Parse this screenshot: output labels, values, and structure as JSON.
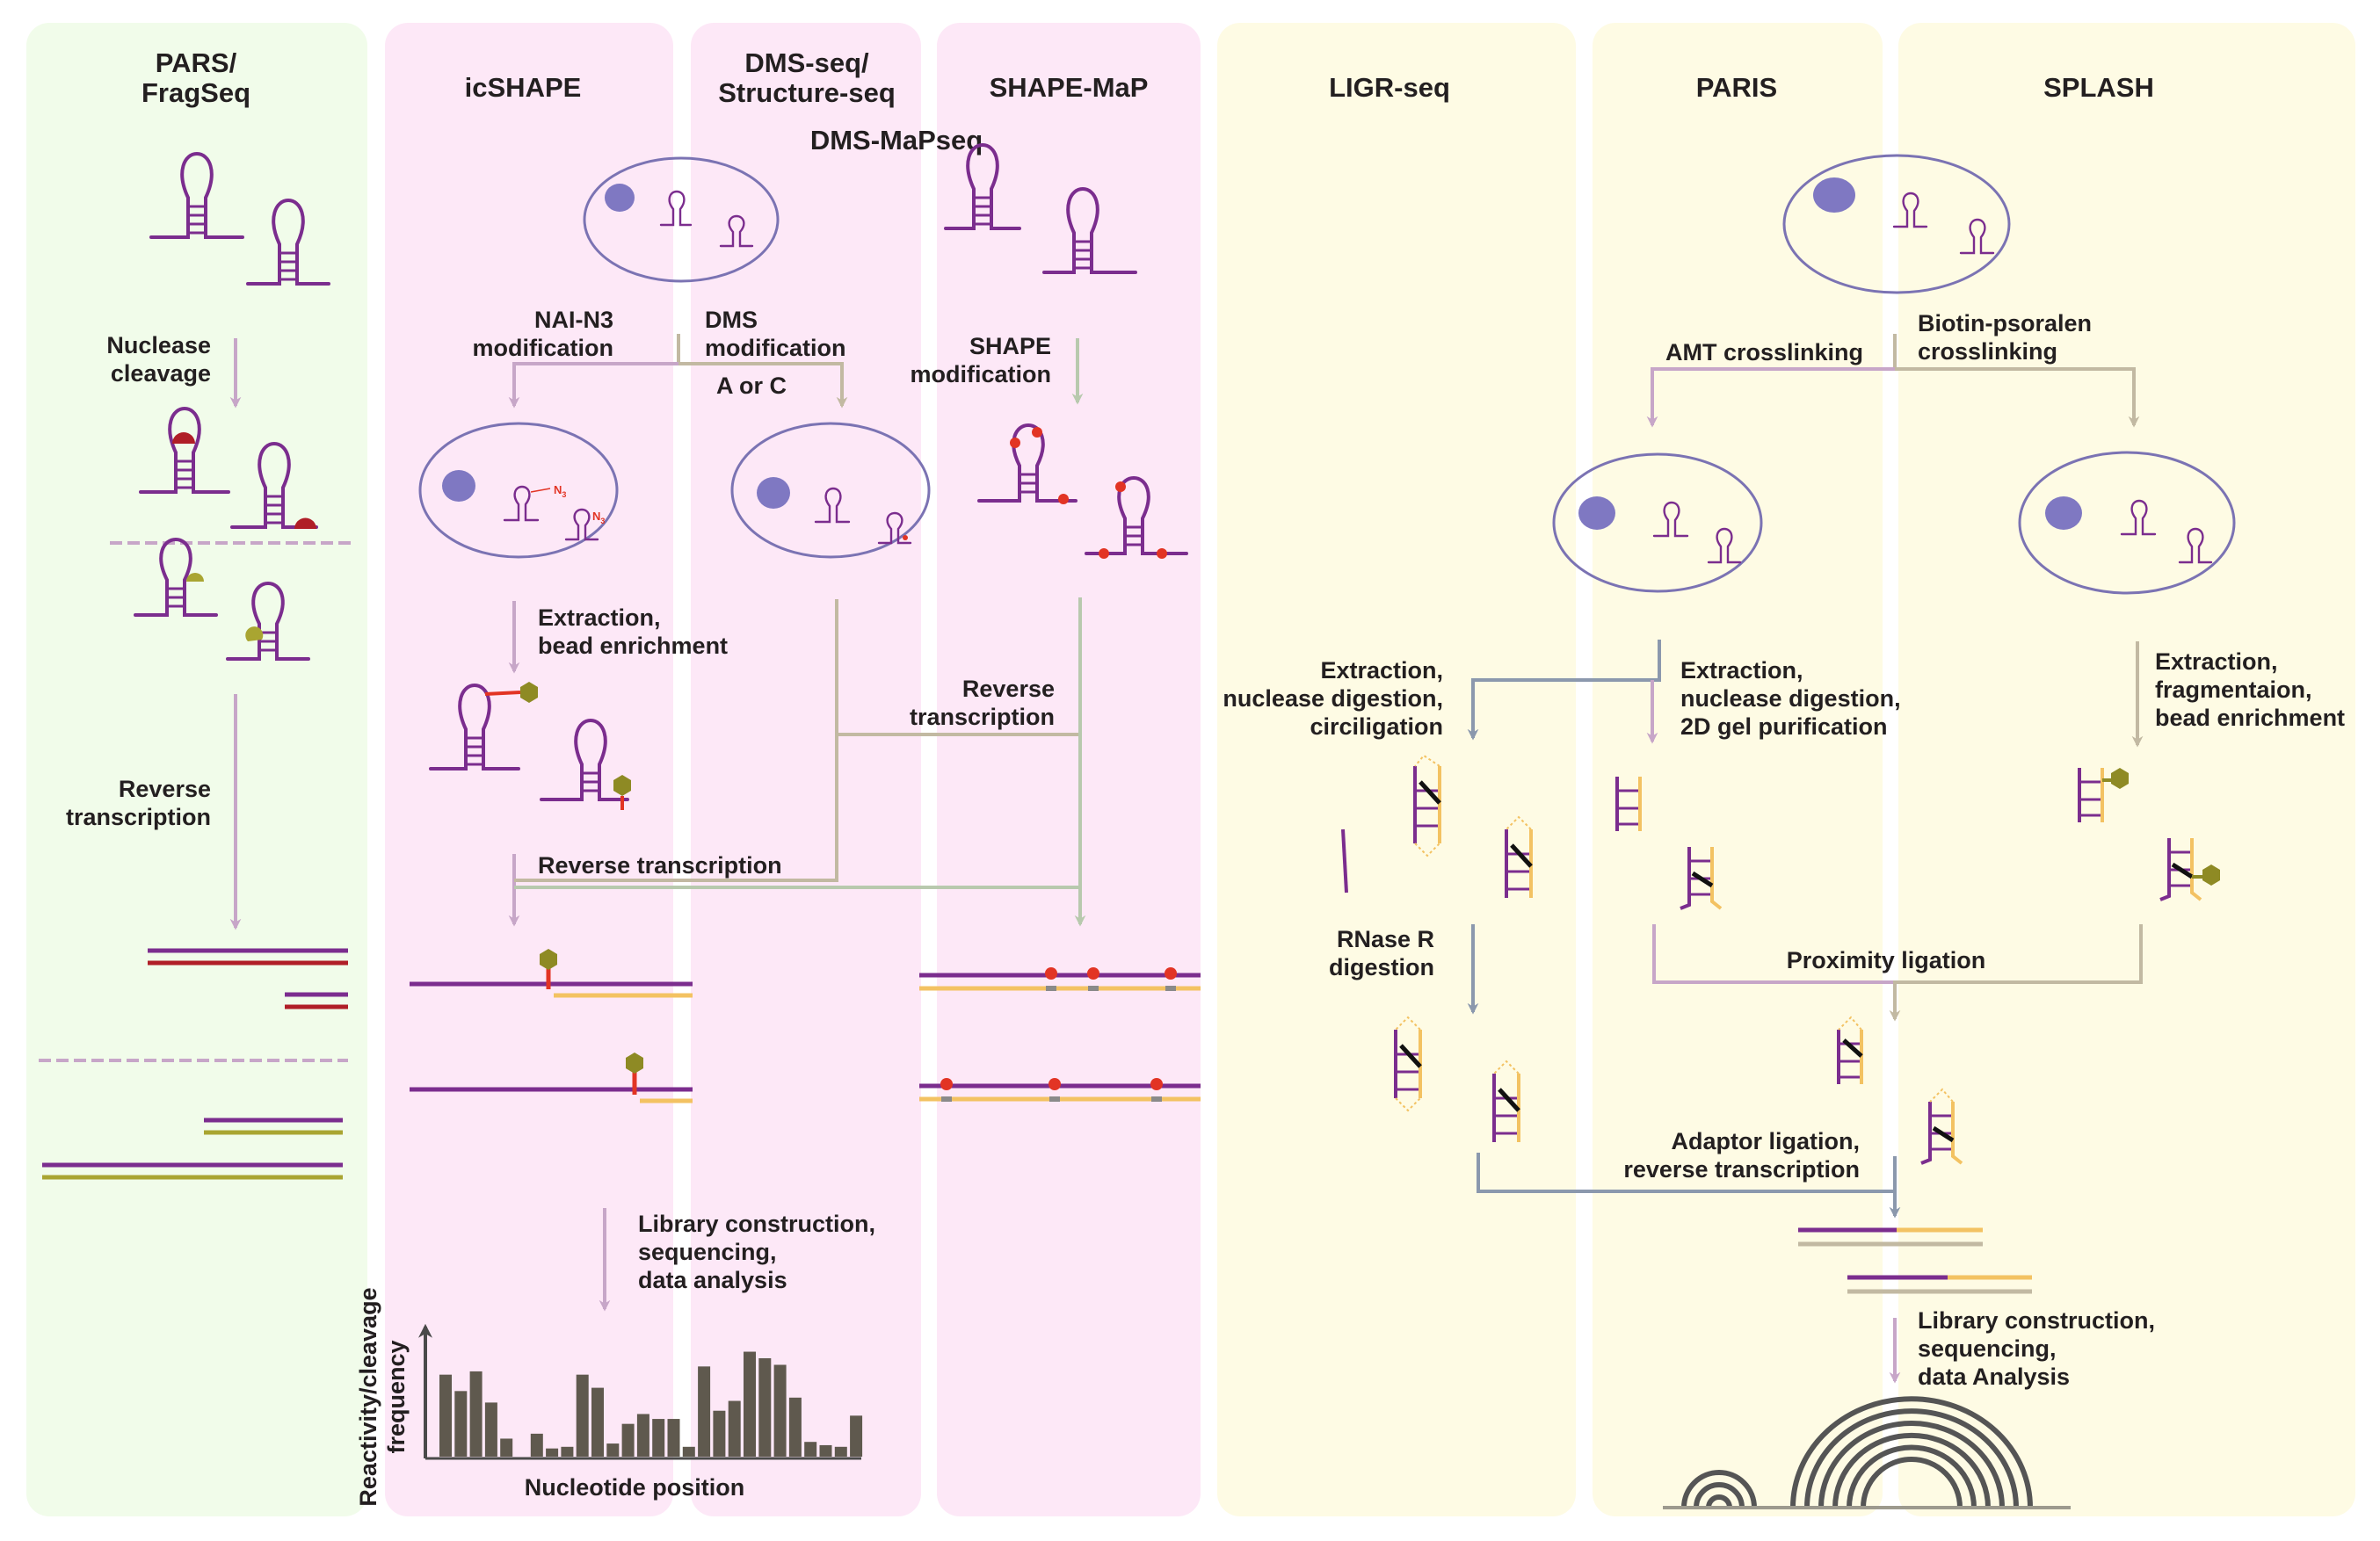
{
  "colors": {
    "panel_green": "#f1fcea",
    "panel_pink": "#fde8f7",
    "panel_yellow": "#fefbe4",
    "rna": "#7b2d8e",
    "cell": "#7b73b3",
    "nucleus": "#7f78c2",
    "arrow_pink": "#c7a6c8",
    "arrow_tan": "#c2b9a2",
    "arrow_green": "#b8c9ae",
    "arrow_blue": "#8b98ad",
    "red": "#e23424",
    "darkred": "#b01e27",
    "olive": "#8e8a24",
    "oliveline": "#a9a531",
    "yellow": "#f3c262",
    "bar": "#5f594e",
    "arc": "#555555"
  },
  "panels": {
    "pars": "PARS/\nFragSeq",
    "icshape": "icSHAPE",
    "dms": "DMS-seq/\nStructure-seq",
    "dms_map": "DMS-MaPseq",
    "shape_map": "SHAPE-MaP",
    "ligr": "LIGR-seq",
    "paris": "PARIS",
    "splash": "SPLASH"
  },
  "steps": {
    "nuclease_cleavage": "Nuclease\ncleavage",
    "pars_rt": "Reverse\ntranscription",
    "nai_n3": "NAI-N3\nmodification",
    "dms_mod": "DMS\nmodification",
    "a_or_c": "A or C",
    "shape_mod": "SHAPE\nmodification",
    "extraction_bead": "Extraction,\nbead enrichment",
    "rt_mid": "Reverse\ntranscription",
    "rt_main": "Reverse transcription",
    "library": "Library construction,\nsequencing,\ndata analysis",
    "amt": "AMT crosslinking",
    "biotin": "Biotin-psoralen\ncrosslinking",
    "ligr_extract": "Extraction,\nnuclease digestion,\ncirciligation",
    "paris_extract": "Extraction,\nnuclease digestion,\n2D gel purification",
    "splash_extract": "Extraction,\nfragmentaion,\nbead enrichment",
    "rnase_r": "RNase R\ndigestion",
    "proximity": "Proximity ligation",
    "adaptor": "Adaptor ligation,\nreverse transcription",
    "library2": "Library construction,\nsequencing,\ndata Analysis"
  },
  "icons": {
    "n3": "N",
    "n3_sub": "3"
  },
  "chart_data": {
    "type": "bar",
    "title": "",
    "xlabel": "Nucleotide position",
    "ylabel": "Reactivity/cleavage\nfrequency",
    "values": [
      5,
      4,
      5.2,
      3.3,
      1.1,
      0,
      1.4,
      0.5,
      0.6,
      5,
      4.2,
      0.8,
      2,
      2.6,
      2.3,
      2.3,
      0.6,
      5.5,
      2.8,
      3.4,
      6.4,
      6,
      5.6,
      3.6,
      0.9,
      0.7,
      0.6,
      2.5
    ],
    "ylim": [
      0,
      7.5
    ]
  }
}
